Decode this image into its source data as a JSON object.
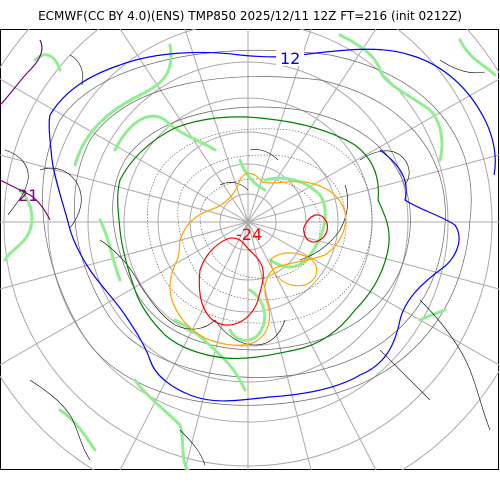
{
  "title": "ECMWF(CC BY 4.0)(ENS) TMP850 2025/12/11 12Z FT=216 (init 0212Z)",
  "contour_labels": {
    "blue": "12",
    "purple": "21",
    "red": "-24"
  },
  "colors": {
    "blue_contour": "#0000ff",
    "green_contour": "#008000",
    "orange_contour": "#ffa500",
    "red_contour": "#ff0000",
    "purple_contour": "#800080",
    "precip_green": "#90ee90",
    "graticule": "#aaaaaa",
    "coastline": "#000000",
    "isotherm_grey": "#666666"
  }
}
